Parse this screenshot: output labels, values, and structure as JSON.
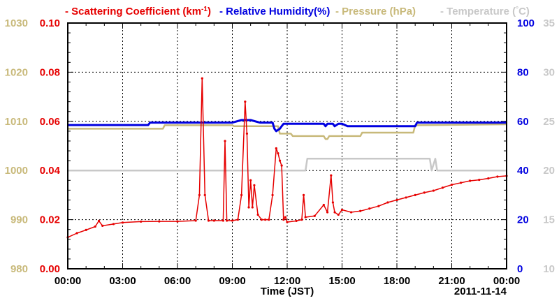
{
  "chart_data": {
    "type": "line",
    "xlabel": "Time (JST)",
    "date_label": "2011-11-14",
    "x_ticks": [
      "00:00",
      "03:00",
      "06:00",
      "09:00",
      "12:00",
      "15:00",
      "18:00",
      "21:00",
      "00:00"
    ],
    "xlim_hours": [
      0,
      24
    ],
    "legend": [
      {
        "text": "- Scattering Coefficient (km",
        "sup": "-1",
        "tail": ")",
        "color": "#e60000"
      },
      {
        "text": "- Relative Humidity(%)",
        "color": "#0000e0"
      },
      {
        "text": "- Pressure (hPa)",
        "color": "#c8b97a"
      },
      {
        "text": "- Temperature (",
        "sup": "°",
        "tail": "C)",
        "color": "#c8c8c8"
      }
    ],
    "axes": {
      "pressure": {
        "ylim": [
          980,
          1030
        ],
        "ticks": [
          "980",
          "990",
          "1000",
          "1010",
          "1020",
          "1030"
        ],
        "color": "#c8b97a"
      },
      "scattering": {
        "ylim": [
          0.0,
          0.1
        ],
        "ticks": [
          "0.00",
          "0.02",
          "0.04",
          "0.06",
          "0.08",
          "0.10"
        ],
        "color": "#e60000"
      },
      "humidity": {
        "ylim": [
          0,
          100
        ],
        "ticks": [
          "0",
          "20",
          "40",
          "60",
          "80",
          "100"
        ],
        "color": "#0000e0"
      },
      "temperature": {
        "ylim": [
          10,
          35
        ],
        "ticks": [
          "10",
          "15",
          "20",
          "25",
          "30",
          "35"
        ],
        "color": "#c8c8c8"
      }
    },
    "series": [
      {
        "name": "Scattering Coefficient (km-1)",
        "axis": "scattering",
        "color": "#e60000",
        "x": [
          0,
          0.5,
          1.0,
          1.5,
          1.7,
          1.9,
          2.5,
          3.0,
          4.0,
          5.0,
          6.0,
          7.0,
          7.2,
          7.35,
          7.5,
          7.7,
          8.0,
          8.5,
          8.6,
          8.7,
          9.0,
          9.3,
          9.5,
          9.7,
          9.8,
          9.9,
          10.0,
          10.1,
          10.2,
          10.4,
          10.6,
          10.8,
          11.0,
          11.2,
          11.4,
          11.5,
          11.6,
          11.7,
          11.8,
          11.9,
          12.0,
          12.5,
          12.8,
          12.9,
          13.0,
          13.5,
          14.0,
          14.2,
          14.4,
          14.5,
          14.6,
          14.8,
          15.0,
          15.5,
          16.0,
          16.5,
          17.0,
          17.5,
          18.0,
          18.5,
          19.0,
          19.5,
          20.0,
          20.5,
          21.0,
          21.5,
          22.0,
          22.5,
          23.0,
          23.5,
          24.0
        ],
        "values": [
          0.0128,
          0.0145,
          0.0158,
          0.0172,
          0.0195,
          0.0175,
          0.0182,
          0.0188,
          0.0192,
          0.0193,
          0.0193,
          0.0196,
          0.03,
          0.0775,
          0.03,
          0.0196,
          0.0196,
          0.0196,
          0.052,
          0.0196,
          0.0196,
          0.02,
          0.03,
          0.068,
          0.055,
          0.025,
          0.036,
          0.025,
          0.034,
          0.022,
          0.02,
          0.02,
          0.02,
          0.03,
          0.049,
          0.047,
          0.044,
          0.042,
          0.02,
          0.021,
          0.019,
          0.0195,
          0.02,
          0.03,
          0.021,
          0.0215,
          0.026,
          0.023,
          0.038,
          0.027,
          0.023,
          0.022,
          0.024,
          0.023,
          0.0235,
          0.0245,
          0.0255,
          0.027,
          0.028,
          0.029,
          0.03,
          0.031,
          0.0318,
          0.033,
          0.0342,
          0.035,
          0.0358,
          0.0362,
          0.0368,
          0.0375,
          0.0378
        ]
      },
      {
        "name": "Relative Humidity(%)",
        "axis": "humidity",
        "color": "#0000e0",
        "x": [
          0,
          4.4,
          4.5,
          7.0,
          7.5,
          8.0,
          8.5,
          9.0,
          9.5,
          9.6,
          10.0,
          10.5,
          11.0,
          11.2,
          11.3,
          11.4,
          11.6,
          11.7,
          11.8,
          12.0,
          13.0,
          14.0,
          14.1,
          14.2,
          14.3,
          14.5,
          14.6,
          14.8,
          15.0,
          15.3,
          16.0,
          18.0,
          19.0,
          19.1,
          20.0,
          24.0
        ],
        "values": [
          58.5,
          58.5,
          59.5,
          59.5,
          59.5,
          59.5,
          59.5,
          59.5,
          60.5,
          60.5,
          60.5,
          59.5,
          59.5,
          59.5,
          57,
          56,
          57,
          58,
          59,
          59,
          59,
          59,
          58,
          59,
          59,
          59,
          58,
          59,
          59,
          58,
          58,
          58,
          58,
          59.5,
          59.5,
          59.5
        ]
      },
      {
        "name": "Pressure (hPa)",
        "axis": "pressure",
        "color": "#c8b97a",
        "x": [
          0,
          5.2,
          5.3,
          9.0,
          9.1,
          11.5,
          11.6,
          12.2,
          12.3,
          14.0,
          14.1,
          14.2,
          14.3,
          14.5,
          16.0,
          16.1,
          18.9,
          19.0,
          24.0
        ],
        "values": [
          1008.5,
          1008.5,
          1009.2,
          1009.2,
          1009.0,
          1009.0,
          1007.5,
          1007.5,
          1007.0,
          1007.0,
          1006.4,
          1006.4,
          1007.0,
          1007.0,
          1007.0,
          1007.7,
          1007.7,
          1009.2,
          1009.4
        ]
      },
      {
        "name": "Temperature (C)",
        "axis": "temperature",
        "color": "#c8c8c8",
        "x": [
          0,
          13.0,
          13.1,
          19.8,
          19.9,
          20.1,
          20.2,
          24.0
        ],
        "values": [
          20,
          20,
          21.2,
          21.2,
          20,
          21.2,
          20,
          20
        ]
      }
    ]
  }
}
